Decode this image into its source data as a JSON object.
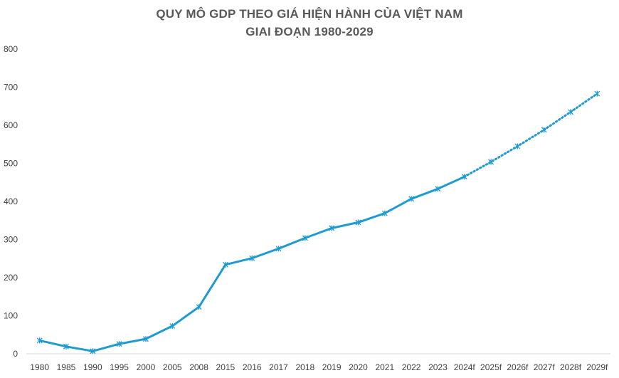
{
  "chart_data": {
    "type": "line",
    "title": "QUY MÔ GDP THEO GIÁ HIỆN HÀNH CỦA VIỆT NAM",
    "subtitle": "GIAI ĐOẠN 1980-2029",
    "xlabel": "",
    "ylabel": "",
    "ylim": [
      0,
      800
    ],
    "yticks": [
      0,
      100,
      200,
      300,
      400,
      500,
      600,
      700,
      800
    ],
    "grid": false,
    "legend": "none",
    "categories": [
      "1980",
      "1985",
      "1990",
      "1995",
      "2000",
      "2005",
      "2008",
      "2015",
      "2016",
      "2017",
      "2018",
      "2019",
      "2020",
      "2021",
      "2022",
      "2023",
      "2024f",
      "2025f",
      "2026f",
      "2027f",
      "2028f",
      "2029f"
    ],
    "series": [
      {
        "style": "solid",
        "color": "#1f9bd1",
        "values": [
          35,
          19,
          7,
          26,
          39,
          73,
          123,
          234,
          251,
          276,
          304,
          330,
          345,
          369,
          407,
          433,
          465,
          null,
          null,
          null,
          null,
          null
        ]
      },
      {
        "style": "dotted",
        "color": "#1f9bd1",
        "values": [
          null,
          null,
          null,
          null,
          null,
          null,
          null,
          null,
          null,
          null,
          null,
          null,
          null,
          null,
          null,
          null,
          465,
          504,
          545,
          588,
          635,
          683
        ]
      }
    ]
  }
}
